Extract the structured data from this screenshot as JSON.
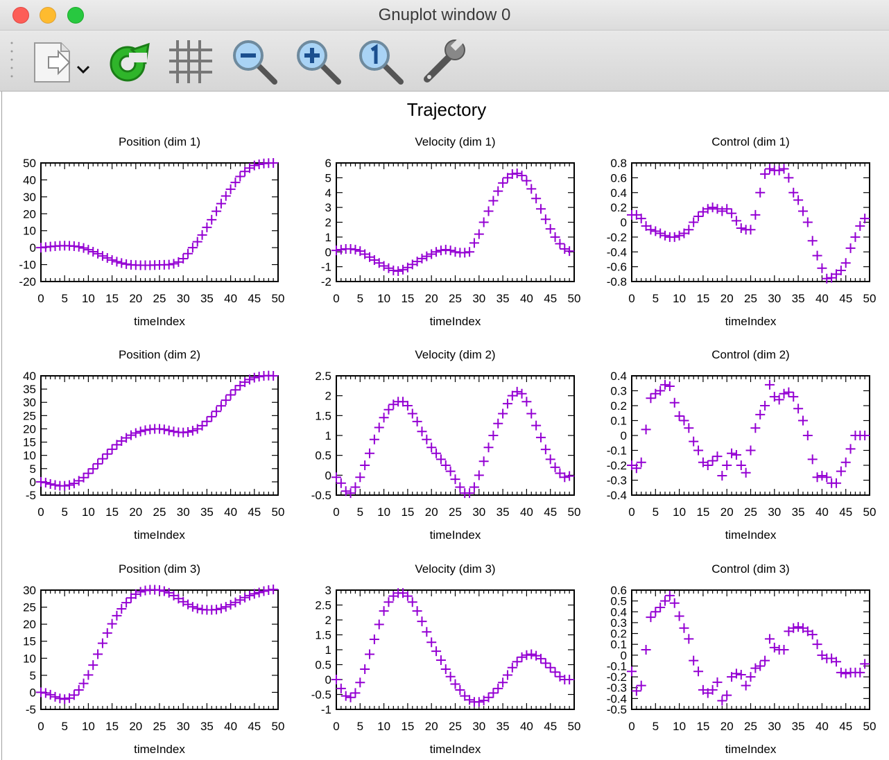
{
  "window": {
    "title": "Gnuplot window 0"
  },
  "toolbar": {
    "items": [
      {
        "name": "export-icon"
      },
      {
        "name": "replot-icon"
      },
      {
        "name": "grid-icon"
      },
      {
        "name": "zoom-out-icon"
      },
      {
        "name": "zoom-in-icon"
      },
      {
        "name": "zoom-reset-icon"
      },
      {
        "name": "settings-wrench-icon"
      }
    ]
  },
  "plot": {
    "title": "Trajectory",
    "marker_color": "#9400D3"
  },
  "chart_data": [
    {
      "type": "scatter",
      "title": "Position (dim 1)",
      "xlabel": "timeIndex",
      "ylabel": "",
      "xlim": [
        0,
        50
      ],
      "ylim": [
        -20,
        50
      ],
      "xticks": [
        "0",
        "5",
        "10",
        "15",
        "20",
        "25",
        "30",
        "35",
        "40",
        "45",
        "50"
      ],
      "yticks": [
        "-20",
        "-10",
        "0",
        "10",
        "20",
        "30",
        "40",
        "50"
      ],
      "x": [
        0,
        1,
        2,
        3,
        4,
        5,
        6,
        7,
        8,
        9,
        10,
        11,
        12,
        13,
        14,
        15,
        16,
        17,
        18,
        19,
        20,
        21,
        22,
        23,
        24,
        25,
        26,
        27,
        28,
        29,
        30,
        31,
        32,
        33,
        34,
        35,
        36,
        37,
        38,
        39,
        40,
        41,
        42,
        43,
        44,
        45,
        46,
        47,
        48,
        49
      ],
      "y": [
        0,
        0.3,
        0.6,
        0.9,
        1.1,
        1.2,
        1.1,
        0.9,
        0.5,
        -0.2,
        -1.2,
        -2.4,
        -3.6,
        -4.9,
        -6.1,
        -7.3,
        -8.3,
        -9.1,
        -9.7,
        -10.1,
        -10.3,
        -10.4,
        -10.4,
        -10.4,
        -10.3,
        -10.2,
        -10.1,
        -10,
        -9.5,
        -8.5,
        -6.5,
        -3.5,
        0,
        3.5,
        7.5,
        12,
        16.5,
        21.5,
        26,
        30.5,
        34.5,
        38.5,
        42,
        45,
        47,
        48.5,
        49.2,
        49.7,
        49.9,
        50
      ]
    },
    {
      "type": "scatter",
      "title": "Velocity (dim 1)",
      "xlabel": "timeIndex",
      "ylabel": "",
      "xlim": [
        0,
        50
      ],
      "ylim": [
        -2,
        6
      ],
      "xticks": [
        "0",
        "5",
        "10",
        "15",
        "20",
        "25",
        "30",
        "35",
        "40",
        "45",
        "50"
      ],
      "yticks": [
        "-2",
        "-1",
        "0",
        "1",
        "2",
        "3",
        "4",
        "5",
        "6"
      ],
      "x": [
        0,
        1,
        2,
        3,
        4,
        5,
        6,
        7,
        8,
        9,
        10,
        11,
        12,
        13,
        14,
        15,
        16,
        17,
        18,
        19,
        20,
        21,
        22,
        23,
        24,
        25,
        26,
        27,
        28,
        29,
        30,
        31,
        32,
        33,
        34,
        35,
        36,
        37,
        38,
        39,
        40,
        41,
        42,
        43,
        44,
        45,
        46,
        47,
        48,
        49
      ],
      "y": [
        0.1,
        0.15,
        0.2,
        0.2,
        0.15,
        0.05,
        -0.15,
        -0.35,
        -0.55,
        -0.75,
        -0.95,
        -1.1,
        -1.25,
        -1.3,
        -1.2,
        -1.05,
        -0.85,
        -0.65,
        -0.45,
        -0.3,
        -0.15,
        0,
        0.1,
        0.15,
        0.1,
        0,
        -0.05,
        -0.05,
        0,
        0.6,
        1.2,
        2,
        2.75,
        3.45,
        4.1,
        4.65,
        5,
        5.25,
        5.3,
        5.15,
        4.8,
        4.25,
        3.6,
        2.9,
        2.2,
        1.55,
        1,
        0.55,
        0.2,
        0.05
      ]
    },
    {
      "type": "scatter",
      "title": "Control (dim 1)",
      "xlabel": "timeIndex",
      "ylabel": "",
      "xlim": [
        0,
        50
      ],
      "ylim": [
        -0.8,
        0.8
      ],
      "xticks": [
        "0",
        "5",
        "10",
        "15",
        "20",
        "25",
        "30",
        "35",
        "40",
        "45",
        "50"
      ],
      "yticks": [
        "-0.8",
        "-0.6",
        "-0.4",
        "-0.2",
        "0",
        "0.2",
        "0.4",
        "0.6",
        "0.8"
      ],
      "x": [
        0,
        1,
        2,
        3,
        4,
        5,
        6,
        7,
        8,
        9,
        10,
        11,
        12,
        13,
        14,
        15,
        16,
        17,
        18,
        19,
        20,
        21,
        22,
        23,
        24,
        25,
        26,
        27,
        28,
        29,
        30,
        31,
        32,
        33,
        34,
        35,
        36,
        37,
        38,
        39,
        40,
        41,
        42,
        43,
        44,
        45,
        46,
        47,
        48,
        49
      ],
      "y": [
        0.1,
        0.1,
        0.05,
        -0.05,
        -0.1,
        -0.12,
        -0.15,
        -0.18,
        -0.2,
        -0.2,
        -0.18,
        -0.15,
        -0.1,
        0,
        0.08,
        0.14,
        0.18,
        0.2,
        0.18,
        0.15,
        0.18,
        0.12,
        0.02,
        -0.08,
        -0.1,
        -0.1,
        0.1,
        0.4,
        0.65,
        0.72,
        0.7,
        0.7,
        0.72,
        0.6,
        0.4,
        0.3,
        0.15,
        0,
        -0.25,
        -0.45,
        -0.62,
        -0.76,
        -0.75,
        -0.7,
        -0.65,
        -0.55,
        -0.35,
        -0.2,
        -0.05,
        0.05
      ]
    },
    {
      "type": "scatter",
      "title": "Position (dim 2)",
      "xlabel": "timeIndex",
      "ylabel": "",
      "xlim": [
        0,
        50
      ],
      "ylim": [
        -5,
        40
      ],
      "xticks": [
        "0",
        "5",
        "10",
        "15",
        "20",
        "25",
        "30",
        "35",
        "40",
        "45",
        "50"
      ],
      "yticks": [
        "-5",
        "0",
        "5",
        "10",
        "15",
        "20",
        "25",
        "30",
        "35",
        "40"
      ],
      "x": [
        0,
        1,
        2,
        3,
        4,
        5,
        6,
        7,
        8,
        9,
        10,
        11,
        12,
        13,
        14,
        15,
        16,
        17,
        18,
        19,
        20,
        21,
        22,
        23,
        24,
        25,
        26,
        27,
        28,
        29,
        30,
        31,
        32,
        33,
        34,
        35,
        36,
        37,
        38,
        39,
        40,
        41,
        42,
        43,
        44,
        45,
        46,
        47,
        48,
        49
      ],
      "y": [
        0,
        -0.3,
        -0.8,
        -1.2,
        -1.5,
        -1.5,
        -1.2,
        -0.6,
        0.4,
        1.6,
        3.2,
        4.9,
        6.8,
        8.7,
        10.5,
        12.3,
        14,
        15.4,
        16.6,
        17.6,
        18.4,
        19,
        19.5,
        19.8,
        20,
        20,
        19.8,
        19.4,
        19,
        18.7,
        18.6,
        18.8,
        19.3,
        20,
        21.2,
        22.8,
        24.6,
        26.6,
        28.7,
        30.8,
        32.8,
        34.7,
        36.3,
        37.6,
        38.6,
        39.3,
        39.7,
        40,
        40.1,
        40
      ]
    },
    {
      "type": "scatter",
      "title": "Velocity (dim 2)",
      "xlabel": "timeIndex",
      "ylabel": "",
      "xlim": [
        0,
        50
      ],
      "ylim": [
        -0.5,
        2.5
      ],
      "xticks": [
        "0",
        "5",
        "10",
        "15",
        "20",
        "25",
        "30",
        "35",
        "40",
        "45",
        "50"
      ],
      "yticks": [
        "-0.5",
        "0",
        "0.5",
        "1",
        "1.5",
        "2",
        "2.5"
      ],
      "x": [
        0,
        1,
        2,
        3,
        4,
        5,
        6,
        7,
        8,
        9,
        10,
        11,
        12,
        13,
        14,
        15,
        16,
        17,
        18,
        19,
        20,
        21,
        22,
        23,
        24,
        25,
        26,
        27,
        28,
        29,
        30,
        31,
        32,
        33,
        34,
        35,
        36,
        37,
        38,
        39,
        40,
        41,
        42,
        43,
        44,
        45,
        46,
        47,
        48,
        49
      ],
      "y": [
        -0.05,
        -0.2,
        -0.4,
        -0.45,
        -0.3,
        -0.05,
        0.25,
        0.55,
        0.9,
        1.2,
        1.45,
        1.65,
        1.78,
        1.85,
        1.85,
        1.75,
        1.55,
        1.35,
        1.1,
        0.9,
        0.7,
        0.55,
        0.4,
        0.25,
        0.1,
        -0.1,
        -0.3,
        -0.45,
        -0.45,
        -0.3,
        0,
        0.35,
        0.7,
        1,
        1.3,
        1.55,
        1.8,
        2,
        2.1,
        2.05,
        1.85,
        1.55,
        1.25,
        0.95,
        0.65,
        0.4,
        0.2,
        0.05,
        -0.05,
        -0.02
      ]
    },
    {
      "type": "scatter",
      "title": "Control (dim 2)",
      "xlabel": "timeIndex",
      "ylabel": "",
      "xlim": [
        0,
        50
      ],
      "ylim": [
        -0.4,
        0.4
      ],
      "xticks": [
        "0",
        "5",
        "10",
        "15",
        "20",
        "25",
        "30",
        "35",
        "40",
        "45",
        "50"
      ],
      "yticks": [
        "-0.4",
        "-0.3",
        "-0.2",
        "-0.1",
        "0",
        "0.1",
        "0.2",
        "0.3",
        "0.4"
      ],
      "x": [
        0,
        1,
        2,
        3,
        4,
        5,
        6,
        7,
        8,
        9,
        10,
        11,
        12,
        13,
        14,
        15,
        16,
        17,
        18,
        19,
        20,
        21,
        22,
        23,
        24,
        25,
        26,
        27,
        28,
        29,
        30,
        31,
        32,
        33,
        34,
        35,
        36,
        37,
        38,
        39,
        40,
        41,
        42,
        43,
        44,
        45,
        46,
        47,
        48,
        49
      ],
      "y": [
        -0.2,
        -0.22,
        -0.18,
        0.04,
        0.25,
        0.28,
        0.3,
        0.34,
        0.33,
        0.22,
        0.13,
        0.1,
        0.05,
        -0.04,
        -0.1,
        -0.18,
        -0.2,
        -0.17,
        -0.14,
        -0.27,
        -0.2,
        -0.12,
        -0.13,
        -0.2,
        -0.25,
        -0.1,
        0.05,
        0.14,
        0.2,
        0.34,
        0.26,
        0.24,
        0.28,
        0.29,
        0.26,
        0.18,
        0.1,
        0,
        -0.16,
        -0.28,
        -0.27,
        -0.28,
        -0.32,
        -0.32,
        -0.24,
        -0.18,
        -0.09,
        0,
        0,
        0
      ]
    },
    {
      "type": "scatter",
      "title": "Position (dim 3)",
      "xlabel": "timeIndex",
      "ylabel": "",
      "xlim": [
        0,
        50
      ],
      "ylim": [
        -5,
        30
      ],
      "xticks": [
        "0",
        "5",
        "10",
        "15",
        "20",
        "25",
        "30",
        "35",
        "40",
        "45",
        "50"
      ],
      "yticks": [
        "-5",
        "0",
        "5",
        "10",
        "15",
        "20",
        "25",
        "30"
      ],
      "x": [
        0,
        1,
        2,
        3,
        4,
        5,
        6,
        7,
        8,
        9,
        10,
        11,
        12,
        13,
        14,
        15,
        16,
        17,
        18,
        19,
        20,
        21,
        22,
        23,
        24,
        25,
        26,
        27,
        28,
        29,
        30,
        31,
        32,
        33,
        34,
        35,
        36,
        37,
        38,
        39,
        40,
        41,
        42,
        43,
        44,
        45,
        46,
        47,
        48,
        49
      ],
      "y": [
        0,
        -0.2,
        -0.7,
        -1.3,
        -1.8,
        -2,
        -1.7,
        -0.8,
        0.7,
        2.6,
        5.1,
        8,
        11.2,
        14.4,
        17.4,
        20.1,
        22.5,
        24.5,
        26.3,
        27.7,
        28.8,
        29.5,
        29.9,
        30.1,
        30.1,
        30,
        29.7,
        29.2,
        28.4,
        27.5,
        26.6,
        25.8,
        25.1,
        24.6,
        24.3,
        24.2,
        24.2,
        24.3,
        24.6,
        25.1,
        25.7,
        26.4,
        27.1,
        27.8,
        28.4,
        28.9,
        29.3,
        29.7,
        30,
        30.2
      ]
    },
    {
      "type": "scatter",
      "title": "Velocity (dim 3)",
      "xlabel": "timeIndex",
      "ylabel": "",
      "xlim": [
        0,
        50
      ],
      "ylim": [
        -1,
        3
      ],
      "xticks": [
        "0",
        "5",
        "10",
        "15",
        "20",
        "25",
        "30",
        "35",
        "40",
        "45",
        "50"
      ],
      "yticks": [
        "-1",
        "-0.5",
        "0",
        "0.5",
        "1",
        "1.5",
        "2",
        "2.5",
        "3"
      ],
      "x": [
        0,
        1,
        2,
        3,
        4,
        5,
        6,
        7,
        8,
        9,
        10,
        11,
        12,
        13,
        14,
        15,
        16,
        17,
        18,
        19,
        20,
        21,
        22,
        23,
        24,
        25,
        26,
        27,
        28,
        29,
        30,
        31,
        32,
        33,
        34,
        35,
        36,
        37,
        38,
        39,
        40,
        41,
        42,
        43,
        44,
        45,
        46,
        47,
        48,
        49
      ],
      "y": [
        0,
        -0.3,
        -0.55,
        -0.6,
        -0.45,
        -0.1,
        0.35,
        0.85,
        1.35,
        1.85,
        2.3,
        2.6,
        2.8,
        2.9,
        2.9,
        2.8,
        2.6,
        2.3,
        1.95,
        1.6,
        1.25,
        0.95,
        0.65,
        0.35,
        0.1,
        -0.15,
        -0.35,
        -0.55,
        -0.68,
        -0.75,
        -0.75,
        -0.7,
        -0.6,
        -0.45,
        -0.3,
        -0.1,
        0.15,
        0.4,
        0.6,
        0.75,
        0.82,
        0.85,
        0.8,
        0.7,
        0.55,
        0.4,
        0.25,
        0.1,
        0,
        0
      ]
    },
    {
      "type": "scatter",
      "title": "Control (dim 3)",
      "xlabel": "timeIndex",
      "ylabel": "",
      "xlim": [
        0,
        50
      ],
      "ylim": [
        -0.5,
        0.6
      ],
      "xticks": [
        "0",
        "5",
        "10",
        "15",
        "20",
        "25",
        "30",
        "35",
        "40",
        "45",
        "50"
      ],
      "yticks": [
        "-0.5",
        "-0.4",
        "-0.3",
        "-0.2",
        "-0.1",
        "0",
        "0.1",
        "0.2",
        "0.3",
        "0.4",
        "0.5",
        "0.6"
      ],
      "x": [
        0,
        1,
        2,
        3,
        4,
        5,
        6,
        7,
        8,
        9,
        10,
        11,
        12,
        13,
        14,
        15,
        16,
        17,
        18,
        19,
        20,
        21,
        22,
        23,
        24,
        25,
        26,
        27,
        28,
        29,
        30,
        31,
        32,
        33,
        34,
        35,
        36,
        37,
        38,
        39,
        40,
        41,
        42,
        43,
        44,
        45,
        46,
        47,
        48,
        49
      ],
      "y": [
        -0.15,
        -0.33,
        -0.28,
        0.05,
        0.35,
        0.4,
        0.44,
        0.5,
        0.55,
        0.48,
        0.36,
        0.25,
        0.15,
        -0.05,
        -0.15,
        -0.32,
        -0.35,
        -0.32,
        -0.25,
        -0.42,
        -0.37,
        -0.2,
        -0.17,
        -0.18,
        -0.28,
        -0.2,
        -0.12,
        -0.1,
        -0.05,
        0.15,
        0.07,
        0.05,
        0.05,
        0.22,
        0.25,
        0.26,
        0.25,
        0.22,
        0.19,
        0.1,
        0,
        -0.03,
        -0.03,
        -0.06,
        -0.16,
        -0.17,
        -0.16,
        -0.16,
        -0.16,
        -0.08
      ]
    }
  ]
}
